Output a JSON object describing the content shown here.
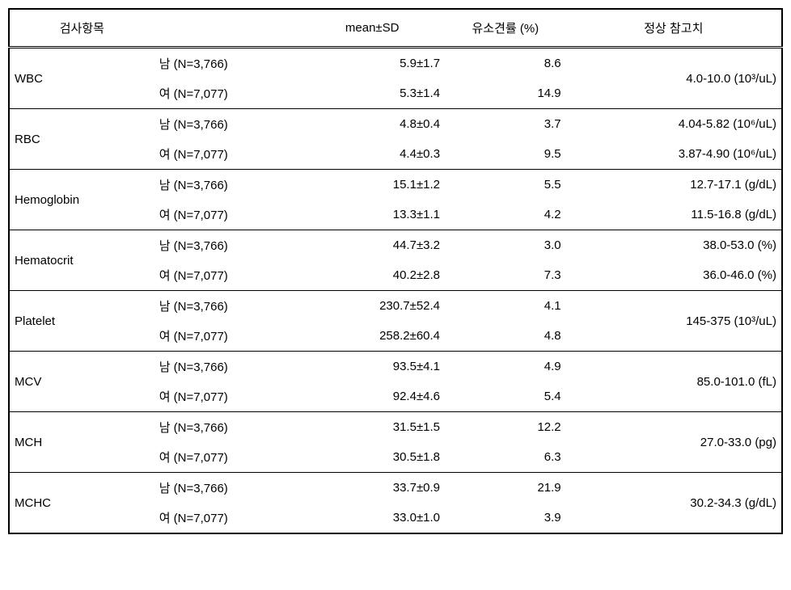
{
  "headers": {
    "item": "검사항목",
    "mean": "mean±SD",
    "ratio": "유소견률 (%)",
    "ref": "정상 참고치"
  },
  "sex": {
    "m": "남 (N=3,766)",
    "f": "여 (N=7,077)"
  },
  "rows": [
    {
      "item": "WBC",
      "m_mean": "5.9±1.7",
      "m_ratio": "8.6",
      "f_mean": "5.3±1.4",
      "f_ratio": "14.9",
      "ref_m": "4.0-10.0 (10³/uL)",
      "ref_f": null
    },
    {
      "item": "RBC",
      "m_mean": "4.8±0.4",
      "m_ratio": "3.7",
      "f_mean": "4.4±0.3",
      "f_ratio": "9.5",
      "ref_m": "4.04-5.82 (10⁶/uL)",
      "ref_f": "3.87-4.90 (10⁶/uL)"
    },
    {
      "item": "Hemoglobin",
      "m_mean": "15.1±1.2",
      "m_ratio": "5.5",
      "f_mean": "13.3±1.1",
      "f_ratio": "4.2",
      "ref_m": "12.7-17.1 (g/dL)",
      "ref_f": "11.5-16.8 (g/dL)"
    },
    {
      "item": "Hematocrit",
      "m_mean": "44.7±3.2",
      "m_ratio": "3.0",
      "f_mean": "40.2±2.8",
      "f_ratio": "7.3",
      "ref_m": "38.0-53.0 (%)",
      "ref_f": "36.0-46.0 (%)"
    },
    {
      "item": "Platelet",
      "m_mean": "230.7±52.4",
      "m_ratio": "4.1",
      "f_mean": "258.2±60.4",
      "f_ratio": "4.8",
      "ref_m": "145-375 (10³/uL)",
      "ref_f": null
    },
    {
      "item": "MCV",
      "m_mean": "93.5±4.1",
      "m_ratio": "4.9",
      "f_mean": "92.4±4.6",
      "f_ratio": "5.4",
      "ref_m": "85.0-101.0 (fL)",
      "ref_f": null
    },
    {
      "item": "MCH",
      "m_mean": "31.5±1.5",
      "m_ratio": "12.2",
      "f_mean": "30.5±1.8",
      "f_ratio": "6.3",
      "ref_m": "27.0-33.0 (pg)",
      "ref_f": null
    },
    {
      "item": "MCHC",
      "m_mean": "33.7±0.9",
      "m_ratio": "21.9",
      "f_mean": "33.0±1.0",
      "f_ratio": "3.9",
      "ref_m": "30.2-34.3 (g/dL)",
      "ref_f": null
    }
  ]
}
